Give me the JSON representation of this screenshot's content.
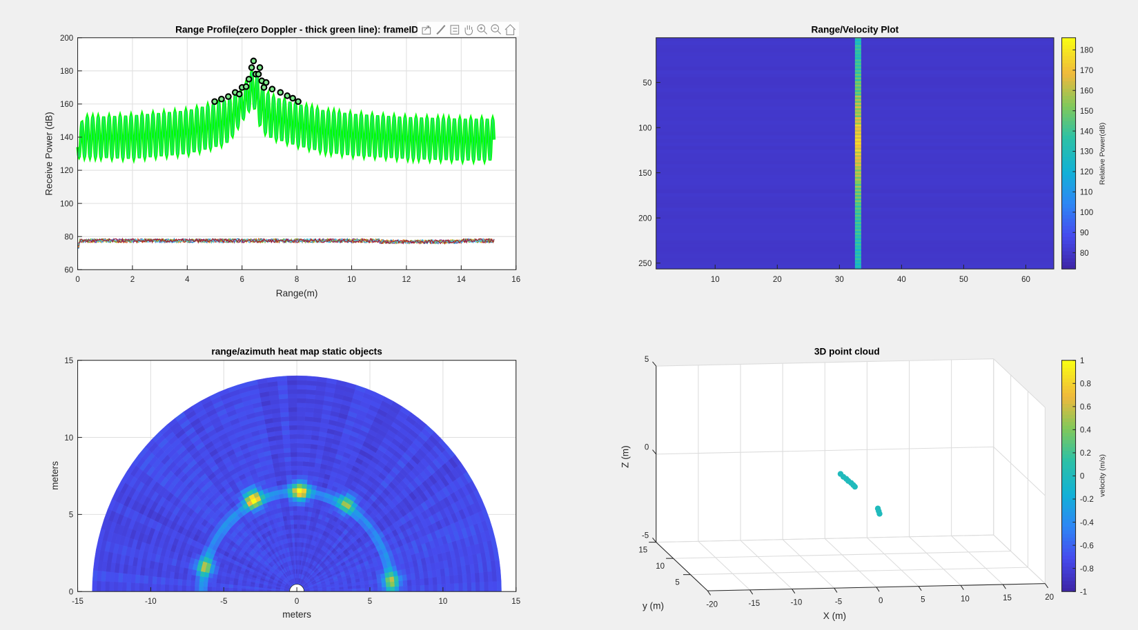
{
  "toolbar": {
    "icons": [
      "export-icon",
      "brush-icon",
      "legend-icon",
      "pan-icon",
      "zoom-in-icon",
      "zoom-out-icon",
      "home-icon"
    ]
  },
  "chart_data": [
    {
      "type": "line",
      "title": "Range Profile(zero Doppler - thick green line): frameID",
      "xlabel": "Range(m)",
      "ylabel": "Receive Power (dB)",
      "xlim": [
        0,
        16
      ],
      "ylim": [
        60,
        200
      ],
      "xticks": [
        0,
        2,
        4,
        6,
        8,
        10,
        12,
        14,
        16
      ],
      "yticks": [
        60,
        80,
        100,
        120,
        140,
        160,
        180,
        200
      ],
      "grid": true,
      "zero_doppler": {
        "color": "#00ff00",
        "ripple_period_m": 0.2,
        "x_end": 15.2,
        "envelope_x": [
          0,
          0.2,
          2,
          4,
          5,
          5.5,
          6,
          6.4,
          6.7,
          7,
          8,
          9,
          10,
          12,
          14,
          15.2
        ],
        "envelope_upper": [
          140,
          152,
          153,
          156,
          160,
          163,
          168,
          181,
          172,
          165,
          160,
          156,
          154,
          152,
          151,
          151
        ],
        "envelope_lower": [
          128,
          128,
          127,
          130,
          134,
          137,
          150,
          160,
          145,
          140,
          135,
          131,
          129,
          127,
          126,
          126
        ]
      },
      "other_doppler": {
        "level_db": 77.5,
        "noise_db": 1.2,
        "colors": [
          "#0072bd",
          "#d95319",
          "#edb120",
          "#7e2f8e",
          "#77ac30",
          "#4dbeee",
          "#a2142f"
        ]
      },
      "detected_points": [
        {
          "x": 5.0,
          "y": 161.5
        },
        {
          "x": 5.25,
          "y": 163
        },
        {
          "x": 5.5,
          "y": 164.5
        },
        {
          "x": 5.75,
          "y": 167
        },
        {
          "x": 5.9,
          "y": 166
        },
        {
          "x": 6.0,
          "y": 170
        },
        {
          "x": 6.15,
          "y": 170.5
        },
        {
          "x": 6.25,
          "y": 175
        },
        {
          "x": 6.35,
          "y": 182
        },
        {
          "x": 6.42,
          "y": 186
        },
        {
          "x": 6.5,
          "y": 178
        },
        {
          "x": 6.6,
          "y": 178
        },
        {
          "x": 6.65,
          "y": 182
        },
        {
          "x": 6.72,
          "y": 174
        },
        {
          "x": 6.8,
          "y": 170
        },
        {
          "x": 6.88,
          "y": 173
        },
        {
          "x": 7.1,
          "y": 169
        },
        {
          "x": 7.4,
          "y": 167
        },
        {
          "x": 7.65,
          "y": 165
        },
        {
          "x": 7.85,
          "y": 163.5
        },
        {
          "x": 8.05,
          "y": 161.5
        }
      ]
    },
    {
      "type": "heatmap",
      "title": "Range/Velocity Plot",
      "xlim": [
        0.5,
        64.5
      ],
      "ylim": [
        0.5,
        256.5
      ],
      "y_reversed": true,
      "xticks": [
        10,
        20,
        30,
        40,
        50,
        60
      ],
      "yticks": [
        50,
        100,
        150,
        200,
        250
      ],
      "clim": [
        72,
        186
      ],
      "colorbar_label": "Relative Power(dB)",
      "colorbar_ticks": [
        80,
        90,
        100,
        110,
        120,
        130,
        140,
        150,
        160,
        170,
        180
      ],
      "background_db": 80,
      "hot_column": 33,
      "hot_column_db": [
        132,
        138,
        135,
        142,
        140,
        145,
        150,
        148,
        155,
        160,
        158,
        165,
        170,
        172,
        175,
        170,
        168,
        165,
        160,
        158,
        152,
        150,
        148,
        145,
        142,
        140,
        138,
        136,
        135,
        133,
        134,
        132
      ]
    },
    {
      "type": "heatmap",
      "title": "range/azimuth heat map static objects",
      "xlabel": "meters",
      "ylabel": "meters",
      "xlim": [
        -15,
        15
      ],
      "ylim": [
        0,
        15
      ],
      "xticks": [
        -15,
        -10,
        -5,
        0,
        5,
        10,
        15
      ],
      "yticks": [
        0,
        5,
        10,
        15
      ],
      "max_range_m": 14,
      "ring_radius_m": 6.5,
      "hotspots": [
        {
          "x": -3,
          "y": 6.0,
          "v": 0.8
        },
        {
          "x": 0.2,
          "y": 6.5,
          "v": 0.75
        },
        {
          "x": 3.4,
          "y": 5.7,
          "v": 0.5
        },
        {
          "x": -6.3,
          "y": 1.6,
          "v": 0.5
        },
        {
          "x": 6.5,
          "y": 0.7,
          "v": 0.5
        }
      ]
    },
    {
      "type": "scatter",
      "title": "3D point cloud",
      "xlabel": "X (m)",
      "ylabel": "y (m)",
      "zlabel": "Z (m)",
      "xlim": [
        -20,
        20
      ],
      "ylim": [
        0,
        15
      ],
      "zlim": [
        -5,
        5
      ],
      "xticks": [
        -20,
        -15,
        -10,
        -5,
        0,
        5,
        10,
        15,
        20
      ],
      "yticks": [
        5,
        10,
        15
      ],
      "zticks": [
        -5,
        0,
        5
      ],
      "clim": [
        -1,
        1
      ],
      "colorbar_label": "velocity (m/s)",
      "colorbar_ticks": [
        -1,
        -0.8,
        -0.6,
        -0.4,
        -0.2,
        0,
        0.2,
        0.4,
        0.6,
        0.8,
        1
      ],
      "points": [
        {
          "x": -1.6,
          "y": 6.5,
          "z": 0.25,
          "v": 0
        },
        {
          "x": -1.3,
          "y": 6.4,
          "z": 0.1,
          "v": 0
        },
        {
          "x": -1.0,
          "y": 6.3,
          "z": 0.0,
          "v": 0
        },
        {
          "x": -0.8,
          "y": 6.2,
          "z": -0.1,
          "v": 0
        },
        {
          "x": -0.5,
          "y": 6.1,
          "z": -0.2,
          "v": 0
        },
        {
          "x": -0.3,
          "y": 6.0,
          "z": -0.3,
          "v": 0
        },
        {
          "x": -0.1,
          "y": 6.0,
          "z": -0.4,
          "v": 0
        },
        {
          "x": 1.4,
          "y": 3,
          "z": -1.1,
          "v": 0
        },
        {
          "x": 1.5,
          "y": 3,
          "z": -1.25,
          "v": 0
        },
        {
          "x": 1.6,
          "y": 3,
          "z": -1.4,
          "v": 0
        }
      ]
    }
  ]
}
